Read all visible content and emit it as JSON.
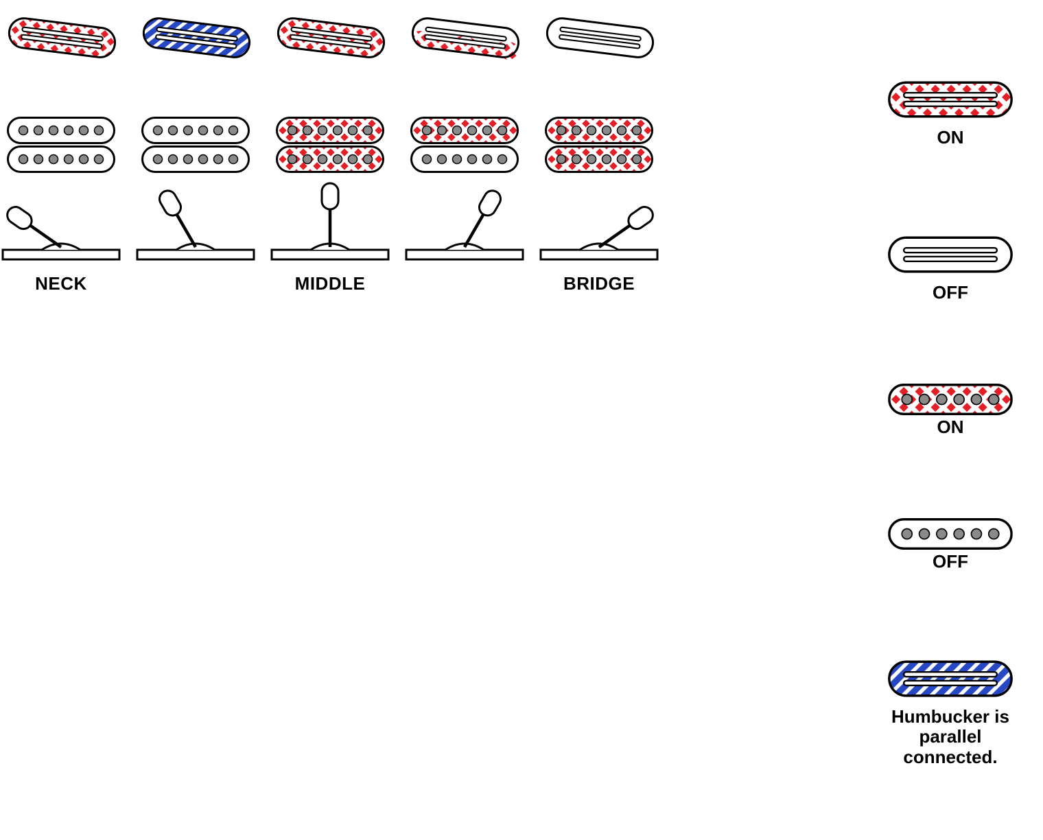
{
  "colors": {
    "stroke": "#000000",
    "red": "#e21f26",
    "blue": "#2648c3",
    "white": "#ffffff",
    "pole": "#8a8a8a"
  },
  "stroke_width": 3,
  "rail_pickup_rotation_deg": 7,
  "positions": [
    {
      "label": "NECK",
      "rail_pattern": "red-cross",
      "humbucker_top": "off",
      "humbucker_bottom": "off",
      "switch_angle": -55
    },
    {
      "label": "",
      "rail_pattern": "blue-stripe",
      "humbucker_top": "off",
      "humbucker_bottom": "off",
      "switch_angle": -30
    },
    {
      "label": "MIDDLE",
      "rail_pattern": "red-cross",
      "humbucker_top": "red-cross",
      "humbucker_bottom": "red-cross",
      "switch_angle": 0
    },
    {
      "label": "",
      "rail_pattern": "half-red",
      "humbucker_top": "red-cross",
      "humbucker_bottom": "off",
      "switch_angle": 30
    },
    {
      "label": "BRIDGE",
      "rail_pattern": "off",
      "humbucker_top": "red-cross",
      "humbucker_bottom": "red-cross",
      "switch_angle": 55
    }
  ],
  "legend": [
    {
      "type": "rail",
      "pattern": "red-cross",
      "label": "ON"
    },
    {
      "type": "rail",
      "pattern": "off",
      "label": "OFF"
    },
    {
      "type": "humbucker",
      "pattern": "red-cross",
      "label": "ON"
    },
    {
      "type": "humbucker",
      "pattern": "off",
      "label": "OFF"
    },
    {
      "type": "rail",
      "pattern": "blue-stripe",
      "label": "Humbucker is\nparallel connected."
    }
  ]
}
